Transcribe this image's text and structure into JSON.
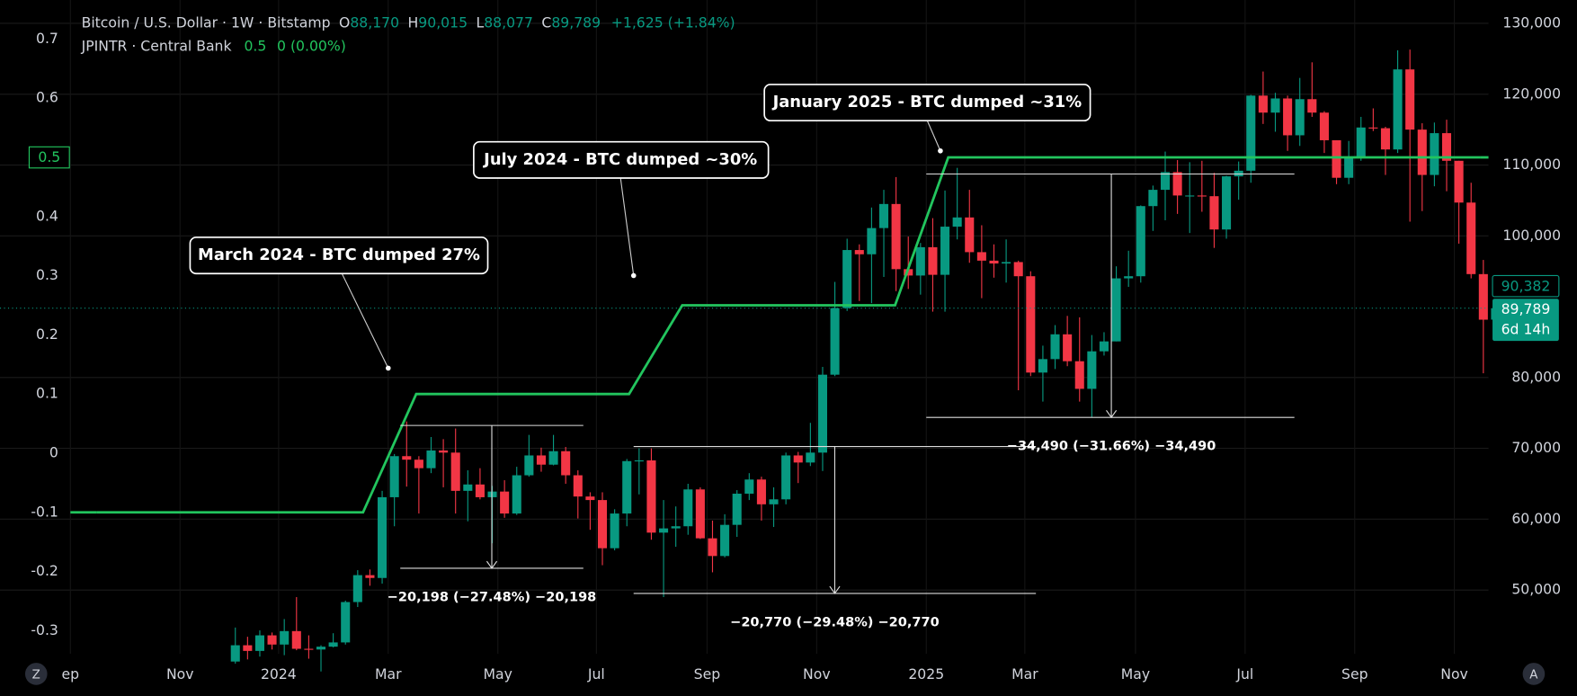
{
  "chart_data": {
    "type": "candlestick",
    "legend": {
      "symbol": "Bitcoin / U.S. Dollar · 1W · Bitstamp",
      "ohlc": [
        {
          "key": "O",
          "value": "88,170"
        },
        {
          "key": "H",
          "value": "90,015"
        },
        {
          "key": "L",
          "value": "88,077"
        },
        {
          "key": "C",
          "value": "89,789"
        }
      ],
      "change": "+1,625 (+1.84%)",
      "indicator": "JPINTR · Central Bank",
      "indicator_change": "0 (0.00%)"
    },
    "series": [
      {
        "name": "Bitcoin / U.S. Dollar · 1W · Bitstamp",
        "up_color": "#089981",
        "down_color": "#f23645",
        "open": [
          39900,
          42200,
          41400,
          43600,
          42300,
          44200,
          41700,
          41600,
          42000,
          42600,
          48300,
          52100,
          51700,
          63100,
          68900,
          68400,
          67200,
          69700,
          69400,
          64000,
          64900,
          63100,
          63900,
          60800,
          66200,
          69000,
          67700,
          69600,
          66200,
          63200,
          62700,
          55900,
          60800,
          68200,
          68300,
          58100,
          58700,
          59000,
          64200,
          57300,
          54800,
          59200,
          63600,
          65600,
          62100,
          62800,
          69000,
          68000,
          69400,
          80400,
          89800,
          98000,
          97400,
          101100,
          104500,
          95300,
          94400,
          98400,
          94500,
          101300,
          102600,
          97700,
          96500,
          96100,
          96300,
          94300,
          80700,
          82600,
          86100,
          82300,
          78400,
          83700,
          85100,
          94000,
          94300,
          104200,
          106500,
          109000,
          105700,
          105700,
          105600,
          100900,
          108400,
          109200,
          119800,
          117400,
          119400,
          114200,
          119300,
          117400,
          113500,
          108200,
          111100,
          115300,
          115200,
          112200,
          123500,
          115000,
          108600,
          114500,
          110600,
          104700,
          94600,
          88170
        ],
        "high": [
          44700,
          43400,
          44300,
          44000,
          45900,
          49000,
          43600,
          42200,
          43900,
          48500,
          52800,
          52900,
          64000,
          69200,
          73800,
          68900,
          71600,
          71300,
          72800,
          66900,
          67200,
          64700,
          65500,
          67400,
          71900,
          70100,
          71900,
          70200,
          66900,
          63800,
          63800,
          61400,
          68500,
          70000,
          70000,
          62700,
          61800,
          65000,
          64500,
          59800,
          60700,
          64100,
          66500,
          66000,
          64500,
          69400,
          69500,
          73600,
          81500,
          93500,
          99600,
          98800,
          104000,
          106500,
          108300,
          99900,
          99000,
          102500,
          106400,
          109600,
          106500,
          101500,
          98800,
          99500,
          96500,
          95000,
          84500,
          87400,
          88700,
          88500,
          86000,
          86400,
          95700,
          97900,
          104300,
          107100,
          111900,
          110700,
          110400,
          110600,
          108900,
          108500,
          110500,
          119900,
          123200,
          120200,
          119800,
          122300,
          124500,
          117600,
          113500,
          113400,
          116800,
          118000,
          115400,
          126200,
          126300,
          115900,
          116000,
          116400,
          110600,
          107500,
          96600,
          90015
        ],
        "low": [
          39600,
          40200,
          40600,
          41600,
          40800,
          41500,
          40300,
          38500,
          41900,
          42300,
          47600,
          50600,
          50900,
          59000,
          64600,
          60800,
          66500,
          64500,
          60800,
          59700,
          62800,
          56600,
          60200,
          60600,
          66000,
          66700,
          67600,
          65000,
          60100,
          58500,
          53500,
          55600,
          59000,
          63500,
          57100,
          49000,
          56100,
          57800,
          57200,
          52500,
          54600,
          57500,
          62700,
          59800,
          58900,
          62100,
          65100,
          67500,
          66800,
          80200,
          89400,
          90800,
          90500,
          94200,
          92200,
          92500,
          91700,
          89300,
          89300,
          99500,
          96200,
          91200,
          94100,
          93400,
          78200,
          80200,
          76600,
          81200,
          81600,
          76600,
          74400,
          83100,
          85100,
          92800,
          93400,
          100700,
          102200,
          103100,
          100400,
          103400,
          98300,
          99600,
          105100,
          107500,
          115800,
          114700,
          112000,
          112700,
          116800,
          111700,
          107300,
          107300,
          110600,
          114800,
          108600,
          111700,
          102000,
          103500,
          107000,
          106300,
          98900,
          94000,
          80600,
          88077
        ],
        "close": [
          42200,
          41400,
          43600,
          42300,
          44200,
          41700,
          41600,
          42000,
          42600,
          48300,
          52100,
          51700,
          63100,
          68900,
          68400,
          67200,
          69700,
          69400,
          64000,
          64900,
          63100,
          63900,
          60800,
          66200,
          69000,
          67700,
          69600,
          66200,
          63200,
          62700,
          55900,
          60800,
          68200,
          68300,
          58100,
          58700,
          59000,
          64200,
          57300,
          54800,
          59200,
          63600,
          65600,
          62100,
          62800,
          69000,
          68000,
          69400,
          80400,
          89800,
          98000,
          97400,
          101100,
          104500,
          95300,
          94400,
          98400,
          94500,
          101300,
          102600,
          97700,
          96500,
          96100,
          96300,
          94300,
          80700,
          82600,
          86100,
          82300,
          78400,
          83700,
          85100,
          94000,
          94300,
          104200,
          106500,
          109000,
          105700,
          105700,
          105600,
          100900,
          108400,
          109200,
          119800,
          117400,
          119400,
          114200,
          119300,
          117400,
          113500,
          108200,
          111100,
          115300,
          115200,
          112200,
          123500,
          115000,
          108600,
          114500,
          110600,
          104700,
          94600,
          88164,
          89789
        ]
      },
      {
        "name": "JPINTR · Central Bank",
        "type": "line",
        "axis": "y2",
        "color": "#22c55e",
        "current_value": 0.5,
        "values": [
          -0.1,
          -0.1,
          -0.1,
          -0.1,
          -0.1,
          -0.1,
          0.1,
          0.1,
          0.1,
          0.1,
          0.1,
          0.25,
          0.25,
          0.25,
          0.25,
          0.25,
          0.5,
          0.5,
          0.5,
          0.5,
          0.5,
          0.5,
          0.5,
          0.5,
          0.5,
          0.5,
          0.5
        ]
      }
    ],
    "x_labels": [
      "ep",
      "Nov",
      "2024",
      "Mar",
      "May",
      "Jul",
      "Sep",
      "Nov",
      "2025",
      "Mar",
      "May",
      "Jul",
      "Sep",
      "Nov"
    ],
    "ylim": [
      41000,
      133300
    ],
    "yticks": [
      {
        "value": 130000,
        "label": "130,000"
      },
      {
        "value": 120000,
        "label": "120,000"
      },
      {
        "value": 110000,
        "label": "110,000"
      },
      {
        "value": 100000,
        "label": "100,000"
      },
      {
        "value": 80000,
        "label": "80,000"
      },
      {
        "value": 70000,
        "label": "70,000"
      },
      {
        "value": 60000,
        "label": "60,000"
      },
      {
        "value": 50000,
        "label": "50,000"
      }
    ],
    "y2lim": [
      -0.339,
      0.766
    ],
    "y2ticks": [
      0.7,
      0.6,
      0.4,
      0.3,
      0.2,
      0.1,
      0,
      -0.1,
      -0.2,
      -0.3
    ],
    "grid": true,
    "price_tags": {
      "prior": "90,382",
      "last": "89,789",
      "countdown": "6d 14h",
      "last_value": 89789
    },
    "annotations": [
      "March 2024 - BTC dumped 27%",
      "July 2024 - BTC dumped ~30%",
      "January 2025 - BTC dumped ~31%"
    ],
    "measurements": [
      "−20,198 (−27.48%) −20,198",
      "−20,770 (−29.48%) −20,770",
      "−34,490 (−31.66%) −34,490"
    ],
    "buttons": [
      "Z",
      "A"
    ]
  }
}
